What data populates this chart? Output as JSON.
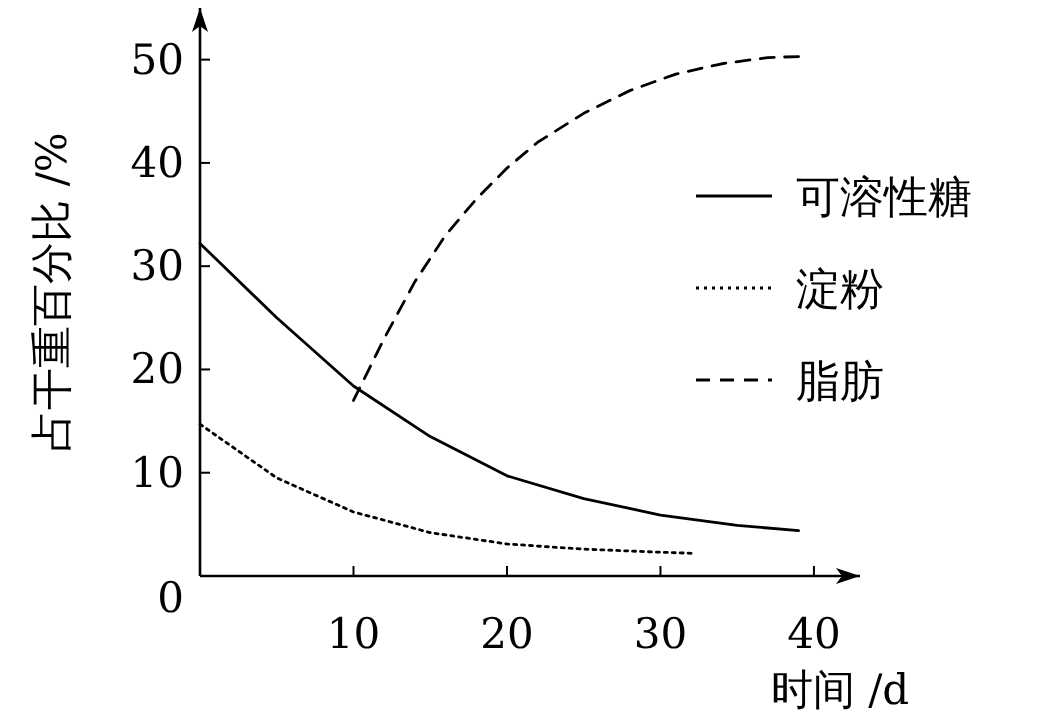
{
  "chart_data": {
    "type": "line",
    "xlabel": "时间 /d",
    "ylabel": "占干重百分比 /%",
    "xlim": [
      0,
      43
    ],
    "ylim": [
      0,
      55
    ],
    "xticks": [
      10,
      20,
      30,
      40
    ],
    "yticks": [
      0,
      10,
      20,
      30,
      40,
      50
    ],
    "legend": "right",
    "series": [
      {
        "name": "可溶性糖",
        "color": "#000000",
        "line_style": "solid",
        "x": [
          0,
          5,
          10,
          15,
          20,
          25,
          30,
          35,
          39
        ],
        "values": [
          32.2,
          25,
          18.4,
          13.5,
          9.7,
          7.5,
          5.9,
          4.9,
          4.4
        ]
      },
      {
        "name": "淀粉",
        "color": "#000000",
        "line_style": "dotted",
        "x": [
          0,
          5,
          10,
          15,
          20,
          25,
          30,
          32
        ],
        "values": [
          14.7,
          9.5,
          6.2,
          4.2,
          3.1,
          2.6,
          2.3,
          2.2
        ]
      },
      {
        "name": "脂肪",
        "color": "#000000",
        "line_style": "dashed",
        "x": [
          10,
          12,
          14,
          16,
          18,
          20,
          22,
          25,
          28,
          31,
          34,
          37,
          39
        ],
        "values": [
          17,
          23,
          28.5,
          33,
          36.5,
          39.5,
          42,
          44.8,
          47,
          48.6,
          49.6,
          50.2,
          50.3
        ]
      }
    ]
  }
}
